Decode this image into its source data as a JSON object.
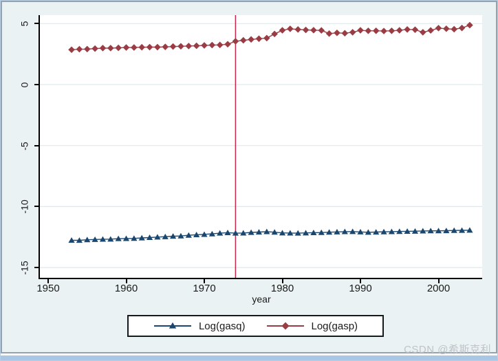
{
  "watermark": "CSDN @希斯克利",
  "legend": {
    "items": [
      {
        "label": "Log(gasq)"
      },
      {
        "label": "Log(gasp)"
      }
    ]
  },
  "chart_data": {
    "type": "line",
    "title": "",
    "xlabel": "year",
    "ylabel": "",
    "xlim": [
      1949,
      2005.7
    ],
    "ylim": [
      -17,
      5.7
    ],
    "grid": true,
    "legend_position": "bottom-center",
    "x_tick_labels": [
      "1950",
      "1960",
      "1970",
      "1980",
      "1990",
      "2000"
    ],
    "x_tick_values": [
      1950,
      1960,
      1970,
      1980,
      1990,
      2000
    ],
    "y_tick_labels": [
      "5",
      "0",
      "-5",
      "-10",
      "-15"
    ],
    "y_tick_values": [
      5,
      0,
      -5,
      -10,
      -15
    ],
    "reference_line": {
      "axis": "x",
      "value": 1974,
      "color": "#c9234a"
    },
    "colors": {
      "background": "#eaf2f3",
      "plot_background": "#ffffff",
      "gridline": "#dfe9ec",
      "axis": "#000000",
      "series_gasq": "#1a476f",
      "series_gasp": "#9a3c44",
      "reference_line": "#c9234a"
    },
    "x": [
      1953,
      1954,
      1955,
      1956,
      1957,
      1958,
      1959,
      1960,
      1961,
      1962,
      1963,
      1964,
      1965,
      1966,
      1967,
      1968,
      1969,
      1970,
      1971,
      1972,
      1973,
      1974,
      1975,
      1976,
      1977,
      1978,
      1979,
      1980,
      1981,
      1982,
      1983,
      1984,
      1985,
      1986,
      1987,
      1988,
      1989,
      1990,
      1991,
      1992,
      1993,
      1994,
      1995,
      1996,
      1997,
      1998,
      1999,
      2000,
      2001,
      2002,
      2003,
      2004
    ],
    "series": [
      {
        "name": "Log(gasq)",
        "color": "#1a476f",
        "marker": "triangle",
        "values": [
          -12.76,
          -12.77,
          -12.72,
          -12.7,
          -12.68,
          -12.67,
          -12.63,
          -12.62,
          -12.61,
          -12.57,
          -12.54,
          -12.5,
          -12.47,
          -12.43,
          -12.41,
          -12.35,
          -12.31,
          -12.28,
          -12.24,
          -12.18,
          -12.14,
          -12.18,
          -12.17,
          -12.12,
          -12.09,
          -12.06,
          -12.1,
          -12.16,
          -12.17,
          -12.18,
          -12.16,
          -12.14,
          -12.13,
          -12.1,
          -12.08,
          -12.06,
          -12.05,
          -12.08,
          -12.11,
          -12.09,
          -12.07,
          -12.06,
          -12.04,
          -12.03,
          -12.02,
          -12.0,
          -11.99,
          -11.99,
          -11.98,
          -11.96,
          -11.95,
          -11.94
        ]
      },
      {
        "name": "Log(gasp)",
        "color": "#9a3c44",
        "marker": "diamond",
        "values": [
          2.86,
          2.9,
          2.91,
          2.95,
          2.99,
          2.99,
          3.01,
          3.04,
          3.04,
          3.06,
          3.07,
          3.07,
          3.09,
          3.12,
          3.14,
          3.16,
          3.18,
          3.21,
          3.24,
          3.25,
          3.31,
          3.55,
          3.63,
          3.7,
          3.76,
          3.81,
          4.15,
          4.45,
          4.57,
          4.52,
          4.48,
          4.46,
          4.44,
          4.18,
          4.24,
          4.21,
          4.29,
          4.45,
          4.41,
          4.41,
          4.39,
          4.41,
          4.45,
          4.52,
          4.5,
          4.29,
          4.44,
          4.63,
          4.58,
          4.54,
          4.64,
          4.87
        ]
      }
    ]
  }
}
